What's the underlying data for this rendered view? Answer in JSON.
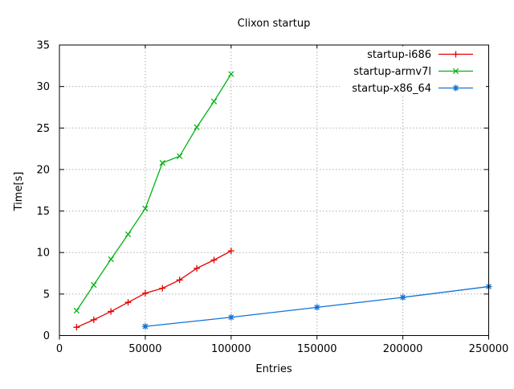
{
  "window": {
    "background": "#ffffff"
  },
  "chart_data": {
    "type": "line",
    "title": "Clixon startup",
    "xlabel": "Entries",
    "ylabel": "Time[s]",
    "xlim": [
      0,
      250000
    ],
    "ylim": [
      0,
      35
    ],
    "xticks": [
      0,
      50000,
      100000,
      150000,
      200000,
      250000
    ],
    "yticks": [
      0,
      5,
      10,
      15,
      20,
      25,
      30,
      35
    ],
    "grid": true,
    "grid_color": "#b0b0b0",
    "axis_color": "#000000",
    "legend_position": "top-right-inside",
    "legend_background": "#ffffff",
    "series": [
      {
        "name": "startup-i686",
        "color": "#e60000",
        "marker": "plus",
        "x": [
          10000,
          20000,
          30000,
          40000,
          50000,
          60000,
          70000,
          80000,
          90000,
          100000
        ],
        "y": [
          1.0,
          1.9,
          2.9,
          4.0,
          5.1,
          5.7,
          6.7,
          8.1,
          9.1,
          10.2
        ]
      },
      {
        "name": "startup-armv7l",
        "color": "#00b315",
        "marker": "cross",
        "x": [
          10000,
          20000,
          30000,
          40000,
          50000,
          60000,
          70000,
          80000,
          90000,
          100000
        ],
        "y": [
          3.0,
          6.1,
          9.2,
          12.2,
          15.3,
          20.8,
          21.6,
          25.1,
          28.2,
          31.5
        ]
      },
      {
        "name": "startup-x86_64",
        "color": "#1273d4",
        "marker": "asterisk",
        "x": [
          50000,
          100000,
          150000,
          200000,
          250000
        ],
        "y": [
          1.1,
          2.2,
          3.4,
          4.6,
          5.9
        ]
      }
    ]
  }
}
